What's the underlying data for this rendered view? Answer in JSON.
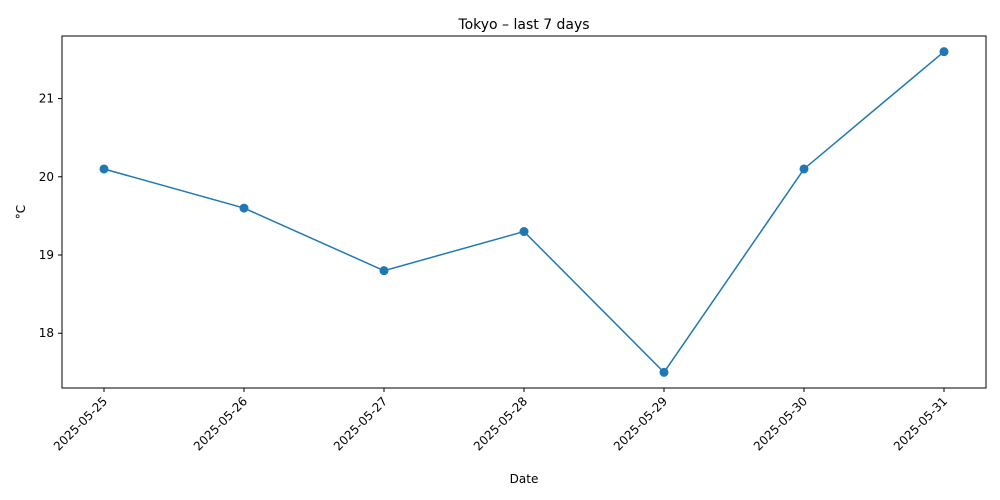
{
  "chart_data": {
    "type": "line",
    "title": "Tokyo – last 7 days",
    "xlabel": "Date",
    "ylabel": "°C",
    "x": [
      "2025-05-25",
      "2025-05-26",
      "2025-05-27",
      "2025-05-28",
      "2025-05-29",
      "2025-05-30",
      "2025-05-31"
    ],
    "series": [
      {
        "values": [
          20.1,
          19.6,
          18.8,
          19.3,
          17.5,
          20.1,
          21.6
        ],
        "color": "#1f77b4",
        "marker": "circle"
      }
    ],
    "ylim": [
      17.3,
      21.8
    ],
    "yticks": [
      18,
      19,
      20,
      21
    ],
    "grid": false,
    "legend": "none"
  }
}
